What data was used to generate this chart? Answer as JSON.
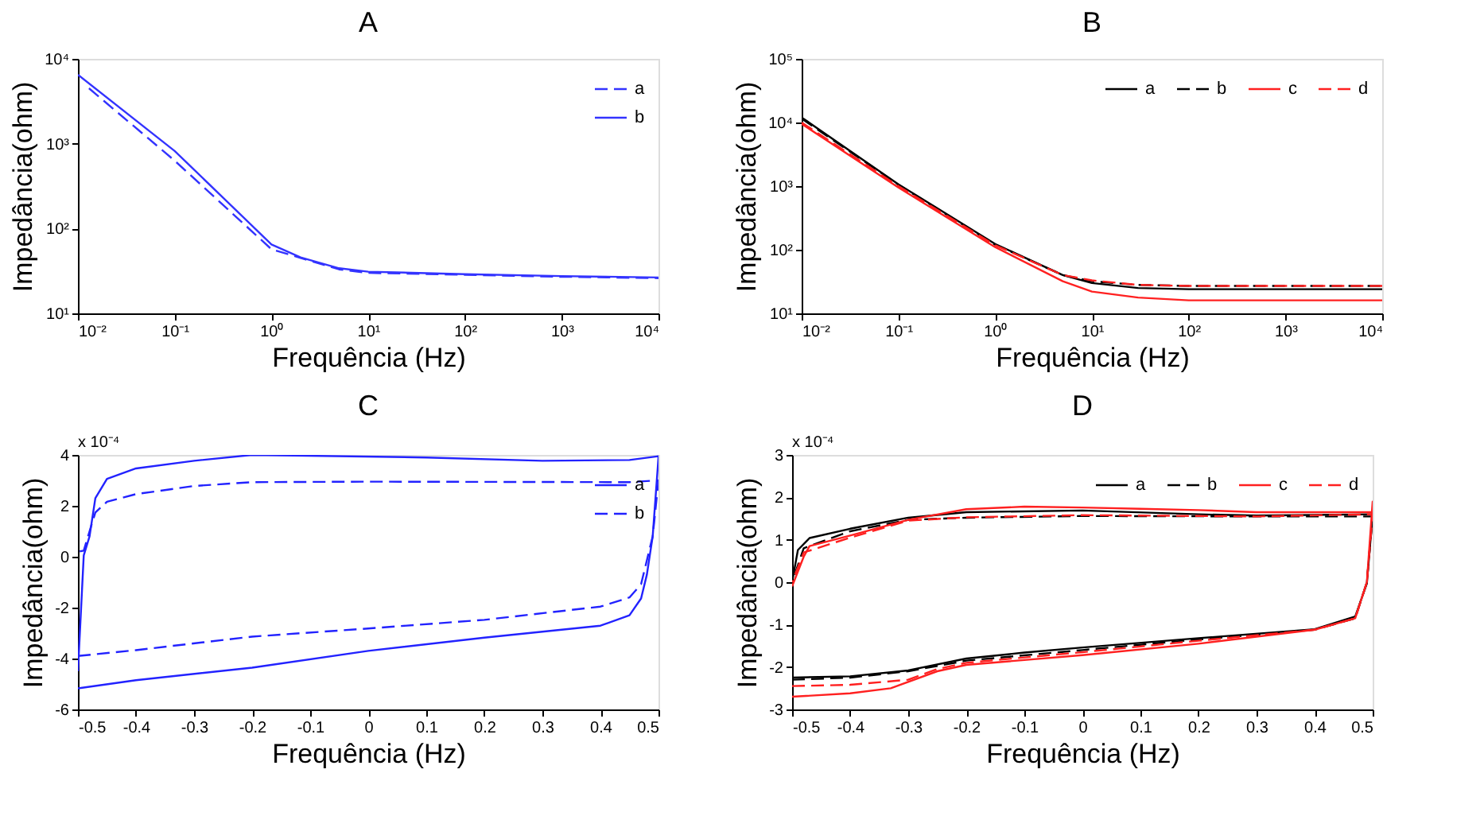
{
  "chart_data": [
    {
      "type": "line",
      "title": "A",
      "xlabel": "Frequência (Hz)",
      "ylabel": "Impedância(ohm)",
      "log": "xy",
      "grid": false,
      "legend": "top right",
      "xlim": [
        0.01,
        10000
      ],
      "ylim": [
        10,
        10000
      ],
      "xticks": [
        {
          "value": 0.01,
          "label": "10⁻²"
        },
        {
          "value": 0.1,
          "label": "10⁻¹"
        },
        {
          "value": 1,
          "label": "10⁰"
        },
        {
          "value": 10,
          "label": "10¹"
        },
        {
          "value": 100,
          "label": "10²"
        },
        {
          "value": 1000,
          "label": "10³"
        },
        {
          "value": 10000,
          "label": "10⁴"
        }
      ],
      "yticks": [
        {
          "value": 10,
          "label": "10¹"
        },
        {
          "value": 100,
          "label": "10²"
        },
        {
          "value": 1000,
          "label": "10³"
        },
        {
          "value": 10000,
          "label": "10⁴"
        }
      ],
      "series": [
        {
          "name": "a",
          "color": "#3333ff",
          "line_style": "dashed",
          "x": [
            0.013,
            0.1,
            1,
            2,
            5,
            10,
            100,
            1000,
            10000
          ],
          "values": [
            4500,
            630,
            57,
            45,
            33,
            30,
            28.5,
            27,
            26
          ]
        },
        {
          "name": "b",
          "color": "#3333ff",
          "line_style": "solid",
          "x": [
            0.01,
            0.1,
            1,
            2,
            5,
            10,
            100,
            1000,
            10000
          ],
          "values": [
            6500,
            820,
            65,
            45.6,
            34,
            31,
            29,
            27.5,
            26.5
          ]
        }
      ]
    },
    {
      "type": "line",
      "title": "B",
      "xlabel": "Frequência (Hz)",
      "ylabel": "Impedância(ohm)",
      "log": "xy",
      "grid": false,
      "legend": "top right",
      "xlim": [
        0.01,
        10000
      ],
      "ylim": [
        10,
        100000
      ],
      "xticks": [
        {
          "value": 0.01,
          "label": "10⁻²"
        },
        {
          "value": 0.1,
          "label": "10⁻¹"
        },
        {
          "value": 1,
          "label": "10⁰"
        },
        {
          "value": 10,
          "label": "10¹"
        },
        {
          "value": 100,
          "label": "10²"
        },
        {
          "value": 1000,
          "label": "10³"
        },
        {
          "value": 10000,
          "label": "10⁴"
        }
      ],
      "yticks": [
        {
          "value": 10,
          "label": "10¹"
        },
        {
          "value": 100,
          "label": "10²"
        },
        {
          "value": 1000,
          "label": "10³"
        },
        {
          "value": 10000,
          "label": "10⁴"
        },
        {
          "value": 100000,
          "label": "10⁵"
        }
      ],
      "series": [
        {
          "name": "a",
          "color": "#000000",
          "line_style": "solid",
          "x": [
            0.01,
            0.1,
            1,
            5,
            10,
            30,
            100,
            1000,
            10000
          ],
          "values": [
            12000,
            1070,
            123,
            40,
            30,
            25,
            24,
            24,
            24
          ]
        },
        {
          "name": "b",
          "color": "#000000",
          "line_style": "dashed",
          "x": [
            0.01,
            0.1,
            1,
            5,
            10,
            30,
            100,
            1000,
            10000
          ],
          "values": [
            11500,
            1050,
            120,
            40,
            32,
            28,
            27,
            27,
            27
          ]
        },
        {
          "name": "c",
          "color": "#ff2020",
          "line_style": "solid",
          "x": [
            0.01,
            0.1,
            1,
            5,
            10,
            30,
            100,
            1000,
            10000
          ],
          "values": [
            9500,
            950,
            110,
            32,
            22,
            17.7,
            16,
            16,
            16
          ]
        },
        {
          "name": "d",
          "color": "#ff2020",
          "line_style": "dashed",
          "x": [
            0.01,
            0.1,
            1,
            5,
            10,
            30,
            100,
            1000,
            10000
          ],
          "values": [
            10000,
            1000,
            118,
            40,
            33,
            28,
            27,
            27,
            27
          ]
        }
      ]
    },
    {
      "type": "line",
      "title": "C",
      "xlabel": "Frequência (Hz)",
      "ylabel": "Impedância(ohm)",
      "grid": false,
      "legend": "top right",
      "annotations": [
        "x 10⁻⁴"
      ],
      "xlim": [
        -0.5,
        0.5
      ],
      "ylim": [
        -6,
        4
      ],
      "xticks": [
        -0.5,
        -0.4,
        -0.3,
        -0.2,
        -0.1,
        0,
        0.1,
        0.2,
        0.3,
        0.4,
        0.5
      ],
      "yticks": [
        -6,
        -4,
        -2,
        0,
        2,
        4
      ],
      "series": [
        {
          "name": "a",
          "color": "#2222ff",
          "line_style": "solid",
          "x": [
            -0.5,
            -0.4,
            -0.2,
            0,
            0.2,
            0.4,
            0.45,
            0.47,
            0.48,
            0.49,
            0.5,
            0.5,
            0.45,
            0.3,
            0.1,
            -0.2,
            -0.3,
            -0.4,
            -0.45,
            -0.47,
            -0.48,
            -0.49,
            -0.5
          ],
          "values": [
            -5.17,
            -4.85,
            -4.36,
            -3.7,
            -3.18,
            -2.71,
            -2.3,
            -1.64,
            -0.7,
            0.8,
            3.9,
            3.95,
            3.8,
            3.77,
            3.9,
            4.0,
            3.77,
            3.47,
            3.06,
            2.3,
            0.8,
            0.05,
            -4.5
          ]
        },
        {
          "name": "b",
          "color": "#2222ff",
          "line_style": "dashed",
          "x": [
            -0.5,
            -0.4,
            -0.2,
            0,
            0.2,
            0.4,
            0.45,
            0.47,
            0.49,
            0.5,
            0.45,
            0,
            -0.2,
            -0.3,
            -0.4,
            -0.45,
            -0.47,
            -0.48,
            -0.49,
            -0.5
          ],
          "values": [
            -3.9,
            -3.67,
            -3.14,
            -2.82,
            -2.48,
            -1.96,
            -1.6,
            -1.08,
            0.8,
            3.0,
            2.93,
            2.95,
            2.93,
            2.78,
            2.46,
            2.16,
            1.74,
            1.0,
            0.24,
            0.2
          ]
        }
      ]
    },
    {
      "type": "line",
      "title": "D",
      "xlabel": "Frequência (Hz)",
      "ylabel": "Impedância(ohm)",
      "grid": false,
      "legend": "top right",
      "annotations": [
        "x 10⁻⁴"
      ],
      "xlim": [
        -0.5,
        0.5
      ],
      "ylim": [
        -3,
        3
      ],
      "xticks": [
        -0.5,
        -0.4,
        -0.3,
        -0.2,
        -0.1,
        0,
        0.1,
        0.2,
        0.3,
        0.4,
        0.5
      ],
      "yticks": [
        -3,
        -2,
        -1,
        0,
        1,
        2,
        3
      ],
      "series": [
        {
          "name": "a",
          "color": "#000000",
          "line_style": "solid",
          "x": [
            -0.5,
            -0.4,
            -0.3,
            -0.2,
            -0.1,
            0,
            0.2,
            0.4,
            0.47,
            0.49,
            0.5,
            0.5,
            0.3,
            0.2,
            0,
            -0.2,
            -0.3,
            -0.4,
            -0.47,
            -0.49,
            -0.5
          ],
          "values": [
            -2.25,
            -2.22,
            -2.08,
            -1.8,
            -1.66,
            -1.54,
            -1.32,
            -1.11,
            -0.81,
            -0.03,
            1.6,
            1.6,
            1.57,
            1.6,
            1.69,
            1.65,
            1.52,
            1.26,
            1.04,
            0.76,
            0
          ]
        },
        {
          "name": "b",
          "color": "#000000",
          "line_style": "dashed",
          "x": [
            -0.5,
            -0.4,
            -0.3,
            -0.2,
            0,
            0.2,
            0.4,
            0.47,
            0.49,
            0.5,
            0.3,
            0,
            -0.2,
            -0.3,
            -0.4,
            -0.48,
            -0.5
          ],
          "values": [
            -2.3,
            -2.25,
            -2.1,
            -1.85,
            -1.6,
            -1.35,
            -1.12,
            -0.85,
            0,
            1.55,
            1.55,
            1.56,
            1.52,
            1.47,
            1.2,
            0.8,
            0
          ]
        },
        {
          "name": "c",
          "color": "#ff2020",
          "line_style": "solid",
          "x": [
            -0.5,
            -0.4,
            -0.33,
            -0.25,
            -0.2,
            0,
            0.2,
            0.4,
            0.47,
            0.49,
            0.5,
            0.5,
            0.3,
            0.2,
            0.1,
            0,
            -0.1,
            -0.2,
            -0.3,
            -0.4,
            -0.47,
            -0.48,
            -0.5
          ],
          "values": [
            -2.7,
            -2.62,
            -2.5,
            -2.1,
            -1.95,
            -1.72,
            -1.45,
            -1.12,
            -0.85,
            0,
            1.9,
            1.65,
            1.65,
            1.7,
            1.73,
            1.76,
            1.78,
            1.72,
            1.47,
            1.1,
            0.85,
            0.6,
            -0.1
          ]
        },
        {
          "name": "d",
          "color": "#ff2020",
          "line_style": "dashed",
          "x": [
            -0.5,
            -0.4,
            -0.3,
            -0.25,
            -0.2,
            0,
            0.2,
            0.4,
            0.47,
            0.49,
            0.5,
            0.3,
            0,
            -0.2,
            -0.3,
            -0.4,
            -0.48,
            -0.5
          ],
          "values": [
            -2.45,
            -2.42,
            -2.3,
            -2.05,
            -1.9,
            -1.65,
            -1.38,
            -1.12,
            -0.85,
            0,
            1.6,
            1.55,
            1.58,
            1.53,
            1.45,
            1.05,
            0.7,
            0
          ]
        }
      ]
    }
  ]
}
